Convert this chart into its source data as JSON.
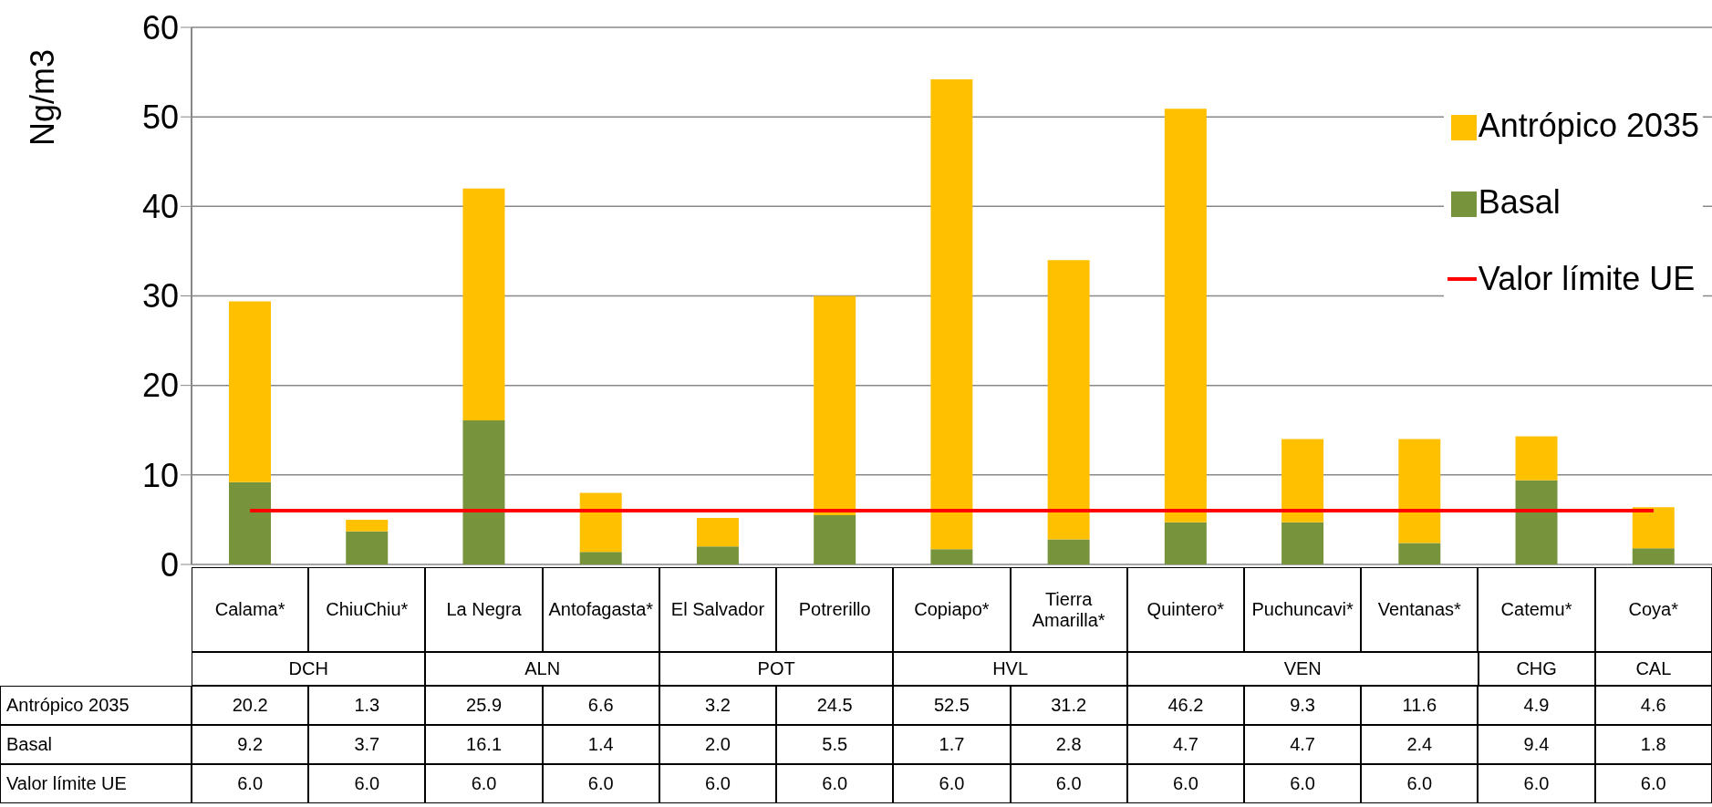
{
  "chart_data": {
    "type": "bar",
    "stacked": true,
    "ylabel": "Ng/m3",
    "ylim": [
      0,
      60
    ],
    "yticks": [
      0,
      10,
      20,
      30,
      40,
      50,
      60
    ],
    "grid": "y",
    "legend": "top right",
    "categories": [
      "Calama*",
      "ChiuChiu*",
      "La Negra",
      "Antofagasta*",
      "El Salvador",
      "Potrerillo",
      "Copiapo*",
      "Tierra Amarilla*",
      "Quintero*",
      "Puchuncavi*",
      "Ventanas*",
      "Catemu*",
      "Coya*"
    ],
    "series": [
      {
        "name": "Basal",
        "color": "#77933c",
        "values": [
          9.2,
          3.7,
          16.1,
          1.4,
          2.0,
          5.5,
          1.7,
          2.8,
          4.7,
          4.7,
          2.4,
          9.4,
          1.8
        ],
        "value_labels": [
          "9.2",
          "3.7",
          "16.1",
          "1.4",
          "2.0",
          "5.5",
          "1.7",
          "2.8",
          "4.7",
          "4.7",
          "2.4",
          "9.4",
          "1.8"
        ]
      },
      {
        "name": "Antrópico 2035",
        "color": "#ffc000",
        "values": [
          20.2,
          1.3,
          25.9,
          6.6,
          3.2,
          24.5,
          52.5,
          31.2,
          46.2,
          9.3,
          11.6,
          4.9,
          4.6
        ],
        "value_labels": [
          "20.2",
          "1.3",
          "25.9",
          "6.6",
          "3.2",
          "24.5",
          "52.5",
          "31.2",
          "46.2",
          "9.3",
          "11.6",
          "4.9",
          "4.6"
        ]
      },
      {
        "name": "Valor límite UE",
        "type": "line",
        "color": "#ff0000",
        "values": [
          6,
          6,
          6,
          6,
          6,
          6,
          6,
          6,
          6,
          6,
          6,
          6,
          6
        ],
        "value_labels": [
          "6.0",
          "6.0",
          "6.0",
          "6.0",
          "6.0",
          "6.0",
          "6.0",
          "6.0",
          "6.0",
          "6.0",
          "6.0",
          "6.0",
          "6.0"
        ]
      }
    ],
    "annotations": [
      "DCH",
      "ALN",
      "POT",
      "HVL",
      "VEN",
      "CHG",
      "CAL"
    ]
  }
}
